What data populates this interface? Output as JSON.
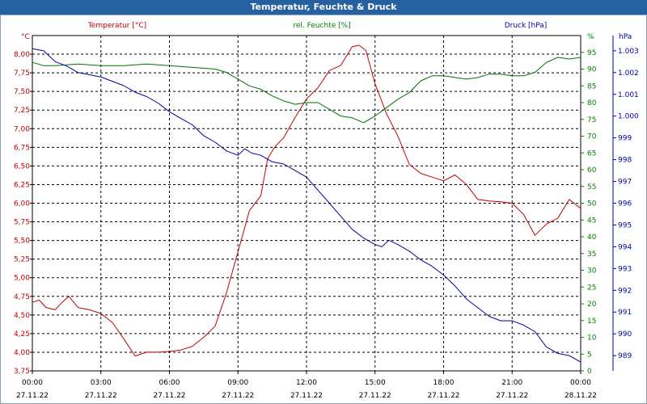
{
  "window": {
    "title": "Temperatur, Feuchte & Druck"
  },
  "chart_data": {
    "type": "line",
    "title": "Temperatur, Feuchte & Druck",
    "x_tick_times": [
      "00:00",
      "03:00",
      "06:00",
      "09:00",
      "12:00",
      "15:00",
      "18:00",
      "21:00",
      "00:00"
    ],
    "x_tick_dates": [
      "27.11.22",
      "27.11.22",
      "27.11.22",
      "27.11.22",
      "27.11.22",
      "27.11.22",
      "27.11.22",
      "27.11.22",
      "28.11.22"
    ],
    "x_range_hours": [
      0,
      24
    ],
    "axes": {
      "temperature": {
        "label": "Temperatur [°C]",
        "unit": "°C",
        "color": "#c00000",
        "range": [
          3.75,
          8.25
        ],
        "ticks": [
          "3,75",
          "4,00",
          "4,25",
          "4,50",
          "4,75",
          "5,00",
          "5,25",
          "5,50",
          "5,75",
          "6,00",
          "6,25",
          "6,50",
          "6,75",
          "7,00",
          "7,25",
          "7,50",
          "7,75",
          "8,00"
        ]
      },
      "humidity": {
        "label": "rel. Feuchte [%]",
        "unit": "%",
        "color": "#008000",
        "range": [
          0,
          100
        ],
        "ticks": [
          "0",
          "5",
          "10",
          "15",
          "20",
          "25",
          "30",
          "35",
          "40",
          "45",
          "50",
          "55",
          "60",
          "65",
          "70",
          "75",
          "80",
          "85",
          "90",
          "95"
        ]
      },
      "pressure": {
        "label": "Druck [hPa]",
        "unit": "hPa",
        "color": "#0000a0",
        "range": [
          988.3,
          1003.7
        ],
        "ticks": [
          "989",
          "990",
          "991",
          "992",
          "993",
          "994",
          "995",
          "996",
          "997",
          "998",
          "999",
          "1.000",
          "1.001",
          "1.002",
          "1.003"
        ]
      }
    },
    "series": [
      {
        "name": "Temperatur",
        "axis": "temperature",
        "color": "#c00000",
        "x": [
          0,
          0.3,
          0.6,
          1,
          1.3,
          1.6,
          2,
          2.5,
          3,
          3.5,
          4,
          4.5,
          5,
          5.5,
          6,
          6.5,
          7,
          7.5,
          8,
          8.5,
          9,
          9.5,
          10,
          10.3,
          10.6,
          11,
          11.5,
          12,
          12.5,
          13,
          13.5,
          14,
          14.3,
          14.6,
          15,
          15.5,
          16,
          16.5,
          17,
          17.5,
          18,
          18.5,
          19,
          19.5,
          20,
          20.5,
          21,
          21.5,
          22,
          22.5,
          23,
          23.5,
          24
        ],
        "values": [
          4.67,
          4.7,
          4.6,
          4.57,
          4.67,
          4.75,
          4.6,
          4.57,
          4.52,
          4.4,
          4.18,
          3.95,
          4.0,
          4.0,
          4.01,
          4.03,
          4.08,
          4.2,
          4.35,
          4.8,
          5.35,
          5.9,
          6.1,
          6.6,
          6.75,
          6.88,
          7.15,
          7.4,
          7.55,
          7.78,
          7.85,
          8.1,
          8.12,
          8.05,
          7.6,
          7.2,
          6.9,
          6.52,
          6.4,
          6.35,
          6.3,
          6.38,
          6.25,
          6.05,
          6.03,
          6.02,
          6.0,
          5.85,
          5.57,
          5.72,
          5.8,
          6.05,
          5.93
        ]
      },
      {
        "name": "rel. Feuchte",
        "axis": "humidity",
        "color": "#007000",
        "x": [
          0,
          0.5,
          1,
          2,
          3,
          4,
          5,
          6,
          7,
          8,
          8.5,
          9,
          9.5,
          10,
          10.5,
          11,
          11.5,
          12,
          12.5,
          13,
          13.5,
          14,
          14.5,
          15,
          15.5,
          16,
          16.5,
          17,
          17.5,
          18,
          18.5,
          19,
          19.5,
          20,
          20.5,
          21,
          21.5,
          22,
          22.5,
          23,
          23.5,
          24
        ],
        "values": [
          92,
          91,
          91,
          91.5,
          91,
          91,
          91.5,
          91,
          90.5,
          90,
          89,
          87,
          85,
          84,
          82,
          80.5,
          79.5,
          80,
          80,
          78,
          76,
          75.5,
          74,
          76,
          78.5,
          81,
          83,
          86.5,
          88,
          88,
          87.5,
          87,
          87.5,
          88.5,
          88.5,
          88,
          88,
          89,
          92,
          93.5,
          93,
          93.5
        ]
      },
      {
        "name": "Druck",
        "axis": "pressure",
        "color": "#0000a0",
        "x": [
          0,
          0.5,
          1,
          1.5,
          2,
          2.5,
          3,
          3.5,
          4,
          4.5,
          5,
          5.5,
          6,
          6.5,
          7,
          7.5,
          8,
          8.5,
          9,
          9.3,
          9.6,
          10,
          10.5,
          11,
          11.5,
          12,
          12.5,
          13,
          13.5,
          14,
          14.5,
          15,
          15.3,
          15.6,
          16,
          16.5,
          17,
          17.5,
          18,
          18.5,
          19,
          19.5,
          20,
          20.5,
          21,
          21.5,
          22,
          22.5,
          23,
          23.5,
          24
        ],
        "values": [
          1003.1,
          1003.0,
          1002.5,
          1002.3,
          1002.0,
          1001.9,
          1001.8,
          1001.6,
          1001.4,
          1001.1,
          1000.9,
          1000.6,
          1000.2,
          999.9,
          999.6,
          999.1,
          998.8,
          998.4,
          998.2,
          998.5,
          998.3,
          998.2,
          997.9,
          997.8,
          997.5,
          997.2,
          996.6,
          996.0,
          995.4,
          994.8,
          994.4,
          994.1,
          994.0,
          994.3,
          994.1,
          993.8,
          993.4,
          993.1,
          992.7,
          992.2,
          991.6,
          991.2,
          990.8,
          990.6,
          990.6,
          990.4,
          990.1,
          989.4,
          989.1,
          989.0,
          988.7
        ]
      }
    ]
  }
}
